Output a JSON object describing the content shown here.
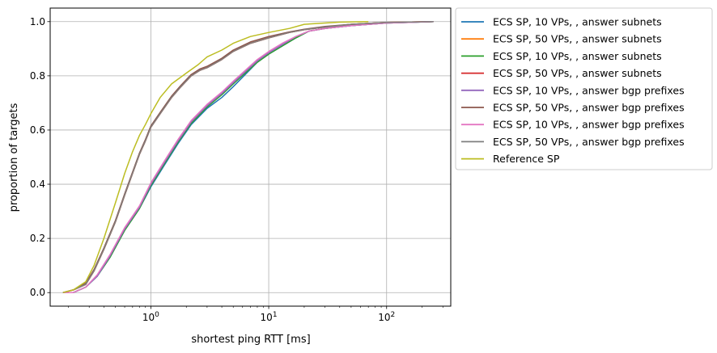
{
  "chart_data": {
    "type": "line",
    "xlabel": "shortest ping RTT [ms]",
    "ylabel": "proportion of targets",
    "xscale": "log",
    "xlim": [
      0.14,
      350
    ],
    "ylim": [
      -0.05,
      1.05
    ],
    "grid": true,
    "legend_position": "outside-upper-right",
    "x_tick_values": [
      1,
      10,
      100
    ],
    "x_tick_labels": [
      {
        "base": "10",
        "exp": "0"
      },
      {
        "base": "10",
        "exp": "1"
      },
      {
        "base": "10",
        "exp": "2"
      }
    ],
    "y_ticks": [
      0.0,
      0.2,
      0.4,
      0.6,
      0.8,
      1.0
    ],
    "y_tick_labels": [
      "0.0",
      "0.2",
      "0.4",
      "0.6",
      "0.8",
      "1.0"
    ],
    "series": [
      {
        "name": "ECS SP, 10 VPs, , answer subnets",
        "color": "#1f77b4",
        "x": [
          0.18,
          0.22,
          0.28,
          0.35,
          0.45,
          0.6,
          0.8,
          1.0,
          1.3,
          1.7,
          2.2,
          3.0,
          4.0,
          5.0,
          6.5,
          8.0,
          10.0,
          13.0,
          17.0,
          22.0,
          30.0,
          50.0,
          100.0,
          250.0
        ],
        "y": [
          0.0,
          0.0,
          0.02,
          0.06,
          0.13,
          0.23,
          0.31,
          0.39,
          0.47,
          0.55,
          0.62,
          0.68,
          0.72,
          0.76,
          0.81,
          0.85,
          0.88,
          0.91,
          0.94,
          0.965,
          0.975,
          0.985,
          0.995,
          1.0
        ]
      },
      {
        "name": "ECS SP, 50 VPs, , answer subnets",
        "color": "#ff7f0e",
        "x": [
          0.18,
          0.22,
          0.28,
          0.33,
          0.4,
          0.5,
          0.6,
          0.7,
          0.8,
          0.9,
          1.0,
          1.2,
          1.5,
          1.8,
          2.2,
          2.6,
          3.0,
          4.0,
          5.0,
          7.0,
          10.0,
          15.0,
          20.0,
          30.0,
          50.0,
          100.0,
          250.0
        ],
        "y": [
          0.0,
          0.01,
          0.03,
          0.08,
          0.16,
          0.26,
          0.36,
          0.44,
          0.51,
          0.56,
          0.61,
          0.66,
          0.72,
          0.76,
          0.8,
          0.82,
          0.83,
          0.86,
          0.89,
          0.92,
          0.94,
          0.96,
          0.97,
          0.98,
          0.99,
          0.997,
          1.0
        ]
      },
      {
        "name": "ECS SP, 10 VPs, , answer subnets",
        "color": "#2ca02c",
        "x": [
          0.18,
          0.22,
          0.28,
          0.35,
          0.45,
          0.6,
          0.8,
          1.0,
          1.3,
          1.7,
          2.2,
          3.0,
          4.0,
          5.0,
          6.5,
          8.0,
          10.0,
          13.0,
          17.0,
          22.0,
          30.0,
          50.0,
          100.0,
          250.0
        ],
        "y": [
          0.0,
          0.0,
          0.02,
          0.06,
          0.13,
          0.23,
          0.31,
          0.395,
          0.475,
          0.555,
          0.625,
          0.685,
          0.73,
          0.77,
          0.815,
          0.85,
          0.88,
          0.91,
          0.94,
          0.965,
          0.975,
          0.985,
          0.995,
          1.0
        ]
      },
      {
        "name": "ECS SP, 50 VPs, , answer subnets",
        "color": "#d62728",
        "x": [
          0.18,
          0.22,
          0.28,
          0.33,
          0.4,
          0.5,
          0.6,
          0.7,
          0.8,
          0.9,
          1.0,
          1.2,
          1.5,
          1.8,
          2.2,
          2.6,
          3.0,
          4.0,
          5.0,
          7.0,
          10.0,
          15.0,
          20.0,
          30.0,
          50.0,
          100.0,
          250.0
        ],
        "y": [
          0.0,
          0.01,
          0.03,
          0.08,
          0.16,
          0.26,
          0.36,
          0.44,
          0.51,
          0.56,
          0.61,
          0.66,
          0.72,
          0.76,
          0.8,
          0.82,
          0.83,
          0.86,
          0.89,
          0.92,
          0.94,
          0.96,
          0.97,
          0.98,
          0.99,
          0.997,
          1.0
        ]
      },
      {
        "name": "ECS SP, 10 VPs, , answer bgp prefixes",
        "color": "#9467bd",
        "x": [
          0.18,
          0.22,
          0.28,
          0.35,
          0.45,
          0.6,
          0.8,
          1.0,
          1.3,
          1.7,
          2.2,
          3.0,
          4.0,
          5.0,
          6.5,
          8.0,
          10.0,
          13.0,
          17.0,
          22.0,
          30.0,
          50.0,
          100.0,
          250.0
        ],
        "y": [
          0.0,
          0.0,
          0.02,
          0.06,
          0.135,
          0.235,
          0.315,
          0.4,
          0.48,
          0.56,
          0.63,
          0.69,
          0.735,
          0.775,
          0.82,
          0.855,
          0.885,
          0.915,
          0.945,
          0.965,
          0.975,
          0.985,
          0.995,
          1.0
        ]
      },
      {
        "name": "ECS SP, 50 VPs, , answer bgp prefixes",
        "color": "#8c564b",
        "x": [
          0.18,
          0.22,
          0.28,
          0.33,
          0.4,
          0.5,
          0.6,
          0.7,
          0.8,
          0.9,
          1.0,
          1.2,
          1.5,
          1.8,
          2.2,
          2.6,
          3.0,
          4.0,
          5.0,
          7.0,
          10.0,
          15.0,
          20.0,
          30.0,
          50.0,
          100.0,
          250.0
        ],
        "y": [
          0.0,
          0.01,
          0.035,
          0.085,
          0.165,
          0.265,
          0.365,
          0.445,
          0.515,
          0.565,
          0.615,
          0.665,
          0.725,
          0.765,
          0.805,
          0.825,
          0.835,
          0.865,
          0.895,
          0.925,
          0.945,
          0.962,
          0.972,
          0.982,
          0.99,
          0.997,
          1.0
        ]
      },
      {
        "name": "ECS SP, 10 VPs, , answer bgp prefixes",
        "color": "#e377c2",
        "x": [
          0.18,
          0.22,
          0.28,
          0.35,
          0.45,
          0.6,
          0.8,
          1.0,
          1.3,
          1.7,
          2.2,
          3.0,
          4.0,
          5.0,
          6.5,
          8.0,
          10.0,
          13.0,
          17.0,
          22.0,
          30.0,
          50.0,
          100.0,
          250.0
        ],
        "y": [
          0.0,
          0.0,
          0.02,
          0.065,
          0.14,
          0.24,
          0.32,
          0.405,
          0.485,
          0.565,
          0.635,
          0.695,
          0.74,
          0.78,
          0.825,
          0.86,
          0.89,
          0.92,
          0.945,
          0.965,
          0.975,
          0.985,
          0.995,
          1.0
        ]
      },
      {
        "name": "ECS SP, 50 VPs, , answer bgp prefixes",
        "color": "#7f7f7f",
        "x": [
          0.18,
          0.22,
          0.28,
          0.33,
          0.4,
          0.5,
          0.6,
          0.7,
          0.8,
          0.9,
          1.0,
          1.2,
          1.5,
          1.8,
          2.2,
          2.6,
          3.0,
          4.0,
          5.0,
          7.0,
          10.0,
          15.0,
          20.0,
          30.0,
          50.0,
          100.0,
          250.0
        ],
        "y": [
          0.0,
          0.01,
          0.03,
          0.08,
          0.16,
          0.26,
          0.36,
          0.44,
          0.51,
          0.56,
          0.61,
          0.66,
          0.72,
          0.76,
          0.8,
          0.82,
          0.83,
          0.86,
          0.89,
          0.92,
          0.94,
          0.96,
          0.97,
          0.98,
          0.99,
          0.997,
          1.0
        ]
      },
      {
        "name": "Reference SP",
        "color": "#bcbd22",
        "x": [
          0.18,
          0.22,
          0.28,
          0.33,
          0.4,
          0.5,
          0.6,
          0.7,
          0.8,
          0.9,
          1.0,
          1.2,
          1.5,
          2.0,
          2.5,
          3.0,
          4.0,
          5.0,
          7.0,
          10.0,
          15.0,
          20.0,
          30.0,
          40.0,
          70.0
        ],
        "y": [
          0.0,
          0.01,
          0.04,
          0.1,
          0.2,
          0.33,
          0.44,
          0.52,
          0.58,
          0.62,
          0.66,
          0.72,
          0.77,
          0.81,
          0.84,
          0.87,
          0.895,
          0.92,
          0.945,
          0.96,
          0.975,
          0.99,
          0.995,
          0.998,
          1.0
        ]
      }
    ]
  }
}
